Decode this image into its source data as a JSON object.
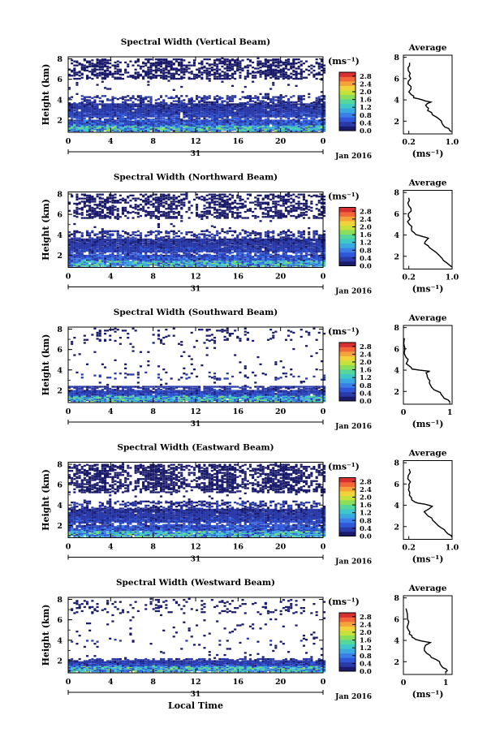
{
  "chart_data": [
    {
      "type": "heatmap",
      "title": "Spectral Width (Vertical Beam)",
      "ylabel": "Height (km)",
      "x_ticks": [
        "0",
        "4",
        "8",
        "12",
        "16",
        "20",
        "0"
      ],
      "day_label": "31",
      "date_label": "Jan 2016",
      "y_ticks": [
        "2",
        "4",
        "6",
        "8"
      ],
      "xlim": [
        0,
        24
      ],
      "ylim": [
        0.8,
        8.2
      ],
      "colorbar": {
        "label": "(ms⁻¹)",
        "ticks": [
          "0.0",
          "0.4",
          "0.8",
          "1.2",
          "1.6",
          "2.0",
          "2.4",
          "2.8"
        ],
        "range": [
          0,
          3.0
        ]
      },
      "features": {
        "bottom_layer_top_km": 3.6,
        "mid_band_km": [
          3.6,
          4.4
        ],
        "upper_region_km": [
          6.0,
          8.0
        ],
        "upper_density": 0.45,
        "mid_density": 0.35
      },
      "average": {
        "title": "Average",
        "xlabel": "(ms⁻¹)",
        "x_ticks": [
          "0.2",
          "1.0"
        ],
        "y_ticks": [
          "2",
          "4",
          "6",
          "8"
        ],
        "xlim": [
          0.1,
          1.0
        ],
        "profile": [
          [
            1.0,
            1.0
          ],
          [
            0.95,
            1.3
          ],
          [
            0.85,
            1.6
          ],
          [
            0.8,
            2.0
          ],
          [
            0.72,
            2.4
          ],
          [
            0.62,
            2.8
          ],
          [
            0.55,
            3.2
          ],
          [
            0.5,
            3.5
          ],
          [
            0.62,
            3.8
          ],
          [
            0.45,
            4.0
          ],
          [
            0.3,
            4.2
          ],
          [
            0.25,
            4.5
          ],
          [
            0.22,
            5.0
          ],
          [
            0.2,
            5.5
          ],
          [
            0.22,
            6.0
          ],
          [
            0.21,
            6.5
          ],
          [
            0.2,
            7.0
          ],
          [
            0.2,
            7.5
          ]
        ]
      }
    },
    {
      "type": "heatmap",
      "title": "Spectral Width (Northward Beam)",
      "ylabel": "Height (km)",
      "x_ticks": [
        "0",
        "4",
        "8",
        "12",
        "16",
        "20",
        "0"
      ],
      "day_label": "31",
      "date_label": "Jan 2016",
      "y_ticks": [
        "2",
        "4",
        "6",
        "8"
      ],
      "xlim": [
        0,
        24
      ],
      "ylim": [
        0.8,
        8.2
      ],
      "colorbar": {
        "label": "(ms⁻¹)",
        "ticks": [
          "0.0",
          "0.4",
          "0.8",
          "1.2",
          "1.6",
          "2.0",
          "2.4",
          "2.8"
        ],
        "range": [
          0,
          3.0
        ]
      },
      "features": {
        "bottom_layer_top_km": 3.6,
        "mid_band_km": [
          3.6,
          4.4
        ],
        "upper_region_km": [
          5.6,
          8.0
        ],
        "upper_density": 0.4,
        "mid_density": 0.3
      },
      "average": {
        "title": "Average",
        "xlabel": "(ms⁻¹)",
        "x_ticks": [
          "0.2",
          "1.0"
        ],
        "y_ticks": [
          "2",
          "4",
          "6",
          "8"
        ],
        "xlim": [
          0.1,
          1.0
        ],
        "profile": [
          [
            1.0,
            1.0
          ],
          [
            0.9,
            1.4
          ],
          [
            0.82,
            1.8
          ],
          [
            0.75,
            2.2
          ],
          [
            0.65,
            2.6
          ],
          [
            0.55,
            3.0
          ],
          [
            0.5,
            3.4
          ],
          [
            0.58,
            3.7
          ],
          [
            0.42,
            3.9
          ],
          [
            0.3,
            4.2
          ],
          [
            0.26,
            4.6
          ],
          [
            0.22,
            5.0
          ],
          [
            0.21,
            5.5
          ],
          [
            0.2,
            6.0
          ],
          [
            0.22,
            6.5
          ],
          [
            0.2,
            7.0
          ],
          [
            0.2,
            7.5
          ]
        ]
      }
    },
    {
      "type": "heatmap",
      "title": "Spectral Width (Southward Beam)",
      "ylabel": "Height (km)",
      "x_ticks": [
        "0",
        "4",
        "8",
        "12",
        "16",
        "20",
        "0"
      ],
      "day_label": "31",
      "date_label": "Jan 2016",
      "y_ticks": [
        "2",
        "4",
        "6",
        "8"
      ],
      "xlim": [
        0,
        24
      ],
      "ylim": [
        0.8,
        8.2
      ],
      "colorbar": {
        "label": "(ms⁻¹)",
        "ticks": [
          "0.0",
          "0.4",
          "0.8",
          "1.2",
          "1.6",
          "2.0",
          "2.4",
          "2.8"
        ],
        "range": [
          0,
          3.0
        ]
      },
      "features": {
        "bottom_layer_top_km": 2.4,
        "mid_band_km": [
          3.0,
          3.8
        ],
        "upper_region_km": [
          6.8,
          8.0
        ],
        "upper_density": 0.1,
        "mid_density": 0.08
      },
      "average": {
        "title": "Average",
        "xlabel": "(ms⁻¹)",
        "x_ticks": [
          "0",
          "1"
        ],
        "y_ticks": [
          "2",
          "4",
          "6",
          "8"
        ],
        "xlim": [
          0,
          1.05
        ],
        "profile": [
          [
            1.0,
            1.0
          ],
          [
            0.95,
            1.2
          ],
          [
            0.85,
            1.5
          ],
          [
            0.78,
            1.9
          ],
          [
            0.62,
            2.4
          ],
          [
            0.55,
            2.8
          ],
          [
            0.52,
            3.2
          ],
          [
            0.5,
            3.6
          ],
          [
            0.55,
            3.9
          ],
          [
            0.2,
            4.1
          ],
          [
            0.12,
            4.4
          ],
          [
            0.08,
            4.8
          ],
          [
            0.06,
            5.2
          ],
          [
            0.05,
            6.0
          ],
          [
            0.04,
            7.0
          ]
        ]
      }
    },
    {
      "type": "heatmap",
      "title": "Spectral Width (Eastward Beam)",
      "ylabel": "Height (km)",
      "x_ticks": [
        "0",
        "4",
        "8",
        "12",
        "16",
        "20",
        "0"
      ],
      "day_label": "31",
      "date_label": "Jan 2016",
      "y_ticks": [
        "2",
        "4",
        "6",
        "8"
      ],
      "xlim": [
        0,
        24
      ],
      "ylim": [
        0.8,
        8.2
      ],
      "colorbar": {
        "label": "(ms⁻¹)",
        "ticks": [
          "0.0",
          "0.4",
          "0.8",
          "1.2",
          "1.6",
          "2.0",
          "2.4",
          "2.8"
        ],
        "range": [
          0,
          3.0
        ]
      },
      "features": {
        "bottom_layer_top_km": 3.6,
        "mid_band_km": [
          3.6,
          4.4
        ],
        "upper_region_km": [
          5.2,
          8.0
        ],
        "upper_density": 0.5,
        "mid_density": 0.35
      },
      "average": {
        "title": "Average",
        "xlabel": "(ms⁻¹)",
        "x_ticks": [
          "0.2",
          "1.0"
        ],
        "y_ticks": [
          "2",
          "4",
          "6",
          "8"
        ],
        "xlim": [
          0.1,
          1.0
        ],
        "profile": [
          [
            1.0,
            1.0
          ],
          [
            0.92,
            1.3
          ],
          [
            0.85,
            1.7
          ],
          [
            0.75,
            2.1
          ],
          [
            0.65,
            2.6
          ],
          [
            0.55,
            3.0
          ],
          [
            0.48,
            3.4
          ],
          [
            0.62,
            3.9
          ],
          [
            0.5,
            4.1
          ],
          [
            0.32,
            4.3
          ],
          [
            0.25,
            4.7
          ],
          [
            0.22,
            5.2
          ],
          [
            0.2,
            5.7
          ],
          [
            0.22,
            6.2
          ],
          [
            0.21,
            6.8
          ],
          [
            0.2,
            7.4
          ]
        ]
      }
    },
    {
      "type": "heatmap",
      "title": "Spectral Width (Westward Beam)",
      "ylabel": "Height (km)",
      "x_ticks": [
        "0",
        "4",
        "8",
        "12",
        "16",
        "20",
        "0"
      ],
      "day_label": "31",
      "date_label": "Jan 2016",
      "xlabel": "Local Time",
      "y_ticks": [
        "2",
        "4",
        "6",
        "8"
      ],
      "xlim": [
        0,
        24
      ],
      "ylim": [
        0.8,
        8.2
      ],
      "colorbar": {
        "label": "(ms⁻¹)",
        "ticks": [
          "0.0",
          "0.4",
          "0.8",
          "1.2",
          "1.6",
          "2.0",
          "2.4",
          "2.8"
        ],
        "range": [
          0,
          3.0
        ]
      },
      "features": {
        "bottom_layer_top_km": 2.2,
        "mid_band_km": [
          3.8,
          4.2
        ],
        "upper_region_km": [
          6.6,
          8.0
        ],
        "upper_density": 0.12,
        "mid_density": 0.05
      },
      "average": {
        "title": "Average",
        "xlabel": "(ms⁻¹)",
        "x_ticks": [
          "0",
          "1"
        ],
        "y_ticks": [
          "2",
          "4",
          "6",
          "8"
        ],
        "xlim": [
          0,
          1.15
        ],
        "profile": [
          [
            1.0,
            1.0
          ],
          [
            1.0,
            1.3
          ],
          [
            0.9,
            1.6
          ],
          [
            0.85,
            2.0
          ],
          [
            0.65,
            2.4
          ],
          [
            0.55,
            2.8
          ],
          [
            0.5,
            3.3
          ],
          [
            0.62,
            3.8
          ],
          [
            0.3,
            4.1
          ],
          [
            0.2,
            4.3
          ],
          [
            0.15,
            4.6
          ],
          [
            0.12,
            5.0
          ],
          [
            0.1,
            5.5
          ],
          [
            0.1,
            6.0
          ],
          [
            0.08,
            7.0
          ]
        ]
      }
    }
  ],
  "palette": [
    "#1b1b6b",
    "#2a3aa8",
    "#2f57d8",
    "#3a7fe8",
    "#3ca8e0",
    "#3ec8c8",
    "#55d69a",
    "#8ade5a",
    "#c6e23a",
    "#f2d23a",
    "#f6a23a",
    "#f2663a",
    "#d83030"
  ]
}
